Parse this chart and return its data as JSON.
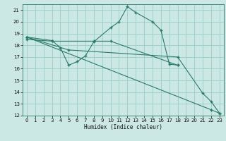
{
  "bg_color": "#cce8e4",
  "grid_color": "#99cccc",
  "line_color": "#2a7a6a",
  "xlabel": "Humidex (Indice chaleur)",
  "xlim": [
    -0.5,
    23.5
  ],
  "ylim": [
    12,
    21.5
  ],
  "yticks": [
    12,
    13,
    14,
    15,
    16,
    17,
    18,
    19,
    20,
    21
  ],
  "xticks": [
    0,
    1,
    2,
    3,
    4,
    5,
    6,
    7,
    8,
    9,
    10,
    11,
    12,
    13,
    14,
    15,
    16,
    17,
    18,
    19,
    20,
    21,
    22,
    23
  ],
  "lines": [
    {
      "x": [
        0,
        3,
        4,
        5,
        6,
        7,
        8,
        10,
        11,
        12,
        13,
        15,
        16,
        17,
        18
      ],
      "y": [
        18.7,
        18.4,
        17.8,
        16.3,
        16.6,
        17.1,
        18.3,
        19.5,
        20.0,
        21.3,
        20.8,
        20.0,
        19.3,
        16.4,
        16.3
      ]
    },
    {
      "x": [
        0,
        3,
        8,
        10,
        18
      ],
      "y": [
        18.5,
        18.35,
        18.35,
        18.35,
        16.3
      ]
    },
    {
      "x": [
        0,
        5,
        18,
        21,
        22,
        23
      ],
      "y": [
        18.7,
        17.6,
        17.0,
        13.9,
        13.2,
        12.2
      ]
    },
    {
      "x": [
        0,
        22,
        23
      ],
      "y": [
        18.7,
        12.5,
        12.2
      ]
    }
  ]
}
